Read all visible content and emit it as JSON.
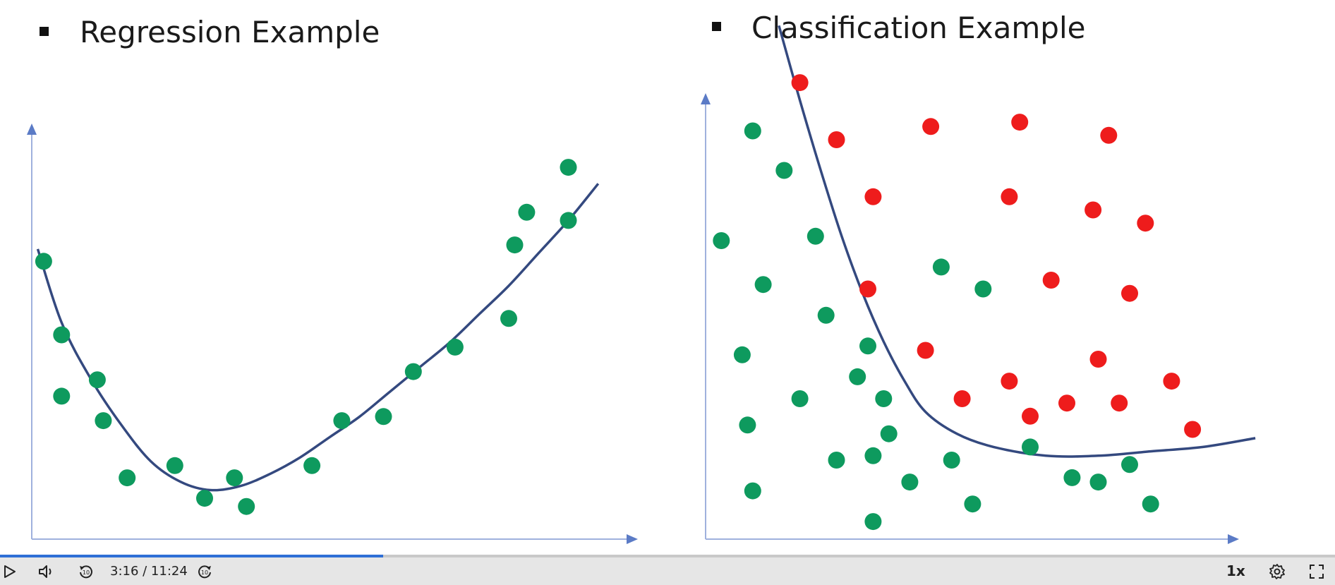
{
  "slide": {
    "left": {
      "title": "Regression Example"
    },
    "right": {
      "title": "Classification Example"
    }
  },
  "chart_data": [
    {
      "type": "scatter",
      "title": "Regression Example",
      "xlabel": "",
      "ylabel": "",
      "xlim": [
        0,
        100
      ],
      "ylim": [
        0,
        100
      ],
      "grid": false,
      "colors": {
        "points": "#0e9a5e",
        "curve": "#34497f",
        "axis": "#5b7bc6"
      },
      "series": [
        {
          "values": [
            [
              2,
              68
            ],
            [
              5,
              50
            ],
            [
              5,
              35
            ],
            [
              11,
              39
            ],
            [
              12,
              29
            ],
            [
              16,
              15
            ],
            [
              24,
              18
            ],
            [
              29,
              10
            ],
            [
              34,
              15
            ],
            [
              36,
              8
            ],
            [
              47,
              18
            ],
            [
              52,
              29
            ],
            [
              59,
              30
            ],
            [
              64,
              41
            ],
            [
              71,
              47
            ],
            [
              80,
              54
            ],
            [
              81,
              72
            ],
            [
              83,
              80
            ],
            [
              90,
              78
            ],
            [
              90,
              91
            ]
          ]
        }
      ],
      "fit_curve": [
        [
          1,
          71
        ],
        [
          5,
          53
        ],
        [
          10,
          39
        ],
        [
          15,
          28
        ],
        [
          20,
          19
        ],
        [
          25,
          14
        ],
        [
          30,
          12
        ],
        [
          35,
          13
        ],
        [
          40,
          16
        ],
        [
          45,
          20
        ],
        [
          50,
          25
        ],
        [
          55,
          30
        ],
        [
          60,
          36
        ],
        [
          65,
          42
        ],
        [
          70,
          48
        ],
        [
          75,
          55
        ],
        [
          80,
          62
        ],
        [
          85,
          70
        ],
        [
          90,
          78
        ],
        [
          95,
          87
        ]
      ]
    },
    {
      "type": "scatter",
      "title": "Classification Example",
      "xlabel": "",
      "ylabel": "",
      "xlim": [
        0,
        100
      ],
      "ylim": [
        0,
        100
      ],
      "grid": false,
      "colors": {
        "class_a": "#0e9a5e",
        "class_b": "#ee1c1c",
        "curve": "#34497f",
        "axis": "#5b7bc6"
      },
      "series": [
        {
          "values": [
            [
              9,
              93
            ],
            [
              15,
              84
            ],
            [
              3,
              68
            ],
            [
              11,
              58
            ],
            [
              7,
              42
            ],
            [
              8,
              26
            ],
            [
              9,
              11
            ],
            [
              21,
              69
            ],
            [
              23,
              51
            ],
            [
              18,
              32
            ],
            [
              25,
              18
            ],
            [
              29,
              37
            ],
            [
              31,
              44
            ],
            [
              34,
              32
            ],
            [
              35,
              24
            ],
            [
              32,
              19
            ],
            [
              32,
              4
            ],
            [
              39,
              13
            ],
            [
              47,
              18
            ],
            [
              51,
              8
            ],
            [
              45,
              62
            ],
            [
              53,
              57
            ],
            [
              62,
              21
            ],
            [
              70,
              14
            ],
            [
              81,
              17
            ],
            [
              75,
              13
            ],
            [
              85,
              8
            ]
          ]
        },
        {
          "values": [
            [
              18,
              104
            ],
            [
              25,
              91
            ],
            [
              32,
              78
            ],
            [
              43,
              94
            ],
            [
              60,
              95
            ],
            [
              77,
              92
            ],
            [
              58,
              78
            ],
            [
              74,
              75
            ],
            [
              84,
              72
            ],
            [
              31,
              57
            ],
            [
              66,
              59
            ],
            [
              81,
              56
            ],
            [
              42,
              43
            ],
            [
              75,
              41
            ],
            [
              49,
              32
            ],
            [
              58,
              36
            ],
            [
              62,
              28
            ],
            [
              69,
              31
            ],
            [
              79,
              31
            ],
            [
              89,
              36
            ],
            [
              93,
              25
            ]
          ]
        }
      ],
      "fit_curve": [
        [
          14,
          117
        ],
        [
          18,
          100
        ],
        [
          22,
          84
        ],
        [
          26,
          69
        ],
        [
          30,
          56
        ],
        [
          34,
          45
        ],
        [
          38,
          36
        ],
        [
          42,
          29
        ],
        [
          48,
          24
        ],
        [
          55,
          21
        ],
        [
          65,
          19
        ],
        [
          75,
          19
        ],
        [
          85,
          20
        ],
        [
          95,
          21
        ],
        [
          105,
          23
        ]
      ]
    }
  ],
  "player": {
    "time_display": "3:16 / 11:24",
    "current_time": "3:16",
    "duration": "11:24",
    "progress": 0.287,
    "speed_label": "1x",
    "icons": [
      "play-icon",
      "volume-icon",
      "rewind-10-icon",
      "forward-10-icon",
      "settings-icon",
      "fullscreen-icon"
    ]
  }
}
